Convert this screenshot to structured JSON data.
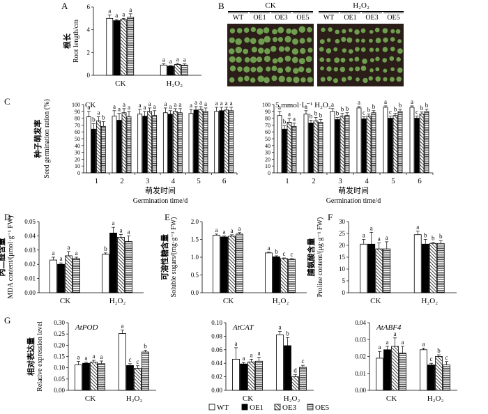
{
  "panel_letters": [
    "A",
    "B",
    "C",
    "D",
    "E",
    "F",
    "G"
  ],
  "legend": [
    {
      "name": "WT",
      "pattern": "white"
    },
    {
      "name": "OE1",
      "pattern": "black"
    },
    {
      "name": "OE3",
      "pattern": "diag"
    },
    {
      "name": "OE5",
      "pattern": "horiz"
    }
  ],
  "photo": {
    "groups": [
      "CK",
      "H₂O₂"
    ],
    "labels": [
      "WT",
      "OE1",
      "OE3",
      "OE5"
    ],
    "colors": {
      "soil": "#2b1d17",
      "plant": "#7cb55a"
    }
  },
  "chart_data": [
    {
      "id": "A",
      "type": "bar",
      "title": "",
      "xlabel": "",
      "ylabel": "根长 Root length/cm",
      "categories": [
        "CK",
        "H₂O₂"
      ],
      "ylim": [
        0,
        6
      ],
      "yticks": [
        0,
        2,
        4,
        6
      ],
      "series": [
        {
          "name": "WT",
          "values": [
            5.0,
            0.9
          ],
          "err": [
            0.3,
            0.1
          ]
        },
        {
          "name": "OE1",
          "values": [
            4.8,
            0.8
          ],
          "err": [
            0.1,
            0.05
          ]
        },
        {
          "name": "OE3",
          "values": [
            4.9,
            0.95
          ],
          "err": [
            0.1,
            0.1
          ]
        },
        {
          "name": "OE5",
          "values": [
            5.1,
            0.9
          ],
          "err": [
            0.3,
            0.1
          ]
        }
      ],
      "letters": [
        [
          "a",
          "a"
        ],
        [
          "a",
          "a"
        ],
        [
          "a",
          "a"
        ],
        [
          "a",
          "a"
        ]
      ]
    },
    {
      "id": "C1",
      "type": "bar",
      "title": "CK",
      "xlabel": "",
      "ylabel": "种子萌发率 Seed germination ration (%)",
      "categories": [
        "1",
        "2",
        "3",
        "4",
        "5",
        "6"
      ],
      "ylim": [
        0,
        100
      ],
      "yticks": [
        0,
        10,
        20,
        30,
        40,
        50,
        60,
        70,
        80,
        90,
        100
      ],
      "series": [
        {
          "name": "WT",
          "values": [
            82,
            83,
            86,
            88,
            87,
            90
          ],
          "err": [
            8,
            8,
            7,
            7,
            6,
            6
          ]
        },
        {
          "name": "OE1",
          "values": [
            64,
            77,
            83,
            86,
            92,
            91
          ],
          "err": [
            8,
            10,
            7,
            5,
            5,
            5
          ]
        },
        {
          "name": "OE3",
          "values": [
            76,
            88,
            90,
            90,
            93,
            92
          ],
          "err": [
            6,
            6,
            5,
            4,
            4,
            4
          ]
        },
        {
          "name": "OE5",
          "values": [
            68,
            82,
            84,
            88,
            90,
            91
          ],
          "err": [
            7,
            8,
            7,
            6,
            5,
            5
          ]
        }
      ],
      "letters": [
        [
          "a",
          "a",
          "a",
          "a",
          "a",
          "a"
        ],
        [
          "b",
          "a",
          "a",
          "a",
          "a",
          "a"
        ],
        [
          "a",
          "a",
          "a",
          "a",
          "a",
          "a"
        ],
        [
          "b",
          "a",
          "a",
          "a",
          "a",
          "a"
        ]
      ]
    },
    {
      "id": "C2",
      "type": "bar",
      "title": "5 mmol·L⁻¹ H₂O₂",
      "xlabel": "",
      "ylabel": "",
      "categories": [
        "1",
        "2",
        "3",
        "4",
        "5",
        "6"
      ],
      "ylim": [
        0,
        100
      ],
      "yticks": [
        0,
        10,
        20,
        30,
        40,
        50,
        60,
        70,
        80,
        90,
        100
      ],
      "series": [
        {
          "name": "WT",
          "values": [
            84,
            86,
            90,
            95,
            96,
            96
          ],
          "err": [
            6,
            5,
            4,
            2,
            2,
            2
          ]
        },
        {
          "name": "OE1",
          "values": [
            64,
            73,
            78,
            79,
            80,
            80
          ],
          "err": [
            5,
            4,
            3,
            3,
            3,
            3
          ]
        },
        {
          "name": "OE3",
          "values": [
            74,
            76,
            83,
            83,
            84,
            86
          ],
          "err": [
            6,
            5,
            4,
            3,
            3,
            3
          ]
        },
        {
          "name": "OE5",
          "values": [
            68,
            74,
            84,
            88,
            90,
            90
          ],
          "err": [
            5,
            4,
            4,
            3,
            3,
            3
          ]
        }
      ],
      "letters": [
        [
          "a",
          "a",
          "a",
          "a",
          "a",
          "a"
        ],
        [
          "b",
          "b",
          "b",
          "c",
          "c",
          "c"
        ],
        [
          "a",
          "b",
          "b",
          "b",
          "b",
          "b"
        ],
        [
          "a",
          "b",
          "b",
          "b",
          "b",
          "b"
        ]
      ]
    },
    {
      "id": "D",
      "type": "bar",
      "title": "",
      "xlabel": "",
      "ylabel": "丙二醛含量 MDA content/(μmol·g⁻¹ FW)",
      "categories": [
        "CK",
        "H₂O₂"
      ],
      "ylim": [
        0,
        0.05
      ],
      "yticks": [
        0,
        0.01,
        0.02,
        0.03,
        0.04,
        0.05
      ],
      "series": [
        {
          "name": "WT",
          "values": [
            0.023,
            0.027
          ],
          "err": [
            0.002,
            0.001
          ]
        },
        {
          "name": "OE1",
          "values": [
            0.02,
            0.042
          ],
          "err": [
            0.001,
            0.004
          ]
        },
        {
          "name": "OE3",
          "values": [
            0.026,
            0.039
          ],
          "err": [
            0.003,
            0.002
          ]
        },
        {
          "name": "OE5",
          "values": [
            0.024,
            0.036
          ],
          "err": [
            0.001,
            0.004
          ]
        }
      ],
      "letters": [
        [
          "a",
          "b"
        ],
        [
          "a",
          "a"
        ],
        [
          "a",
          "a"
        ],
        [
          "a",
          "a"
        ]
      ]
    },
    {
      "id": "E",
      "type": "bar",
      "title": "",
      "xlabel": "",
      "ylabel": "可溶性糖含量 Soluble sugars/(mg·g⁻¹ FW)",
      "categories": [
        "CK",
        "H₂O₂"
      ],
      "ylim": [
        0,
        2.0
      ],
      "yticks": [
        0,
        0.5,
        1.0,
        1.5,
        2.0
      ],
      "series": [
        {
          "name": "WT",
          "values": [
            1.62,
            1.12
          ],
          "err": [
            0.03,
            0.02
          ]
        },
        {
          "name": "OE1",
          "values": [
            1.57,
            1.01
          ],
          "err": [
            0.03,
            0.03
          ]
        },
        {
          "name": "OE3",
          "values": [
            1.59,
            0.96
          ],
          "err": [
            0.04,
            0.02
          ]
        },
        {
          "name": "OE5",
          "values": [
            1.65,
            0.94
          ],
          "err": [
            0.04,
            0.02
          ]
        }
      ],
      "letters": [
        [
          "a",
          "a"
        ],
        [
          "a",
          "b"
        ],
        [
          "a",
          "c"
        ],
        [
          "a",
          "c"
        ]
      ]
    },
    {
      "id": "F",
      "type": "bar",
      "title": "",
      "xlabel": "",
      "ylabel": "脯氨酸含量 Proline content/(μg·g⁻¹ FW)",
      "categories": [
        "CK",
        "H₂O₂"
      ],
      "ylim": [
        0,
        30
      ],
      "yticks": [
        0,
        5,
        10,
        15,
        20,
        25,
        30
      ],
      "series": [
        {
          "name": "WT",
          "values": [
            20.5,
            24.5
          ],
          "err": [
            2.0,
            1.5
          ]
        },
        {
          "name": "OE1",
          "values": [
            20.5,
            20.5
          ],
          "err": [
            5.0,
            2.0
          ]
        },
        {
          "name": "OE3",
          "values": [
            18.5,
            20.8
          ],
          "err": [
            2.5,
            0.5
          ]
        },
        {
          "name": "OE5",
          "values": [
            18.5,
            20.8
          ],
          "err": [
            3.0,
            1.2
          ]
        }
      ],
      "letters": [
        [
          "a",
          "a"
        ],
        [
          "a",
          "b"
        ],
        [
          "a",
          "b"
        ],
        [
          "a",
          "b"
        ]
      ]
    },
    {
      "id": "G1",
      "type": "bar",
      "title": "AtPOD",
      "xlabel": "",
      "ylabel": "相对表达量 Relative expression level",
      "categories": [
        "CK",
        "H₂O₂"
      ],
      "ylim": [
        0,
        0.3
      ],
      "yticks": [
        0,
        0.05,
        0.1,
        0.15,
        0.2,
        0.25,
        0.3
      ],
      "series": [
        {
          "name": "WT",
          "values": [
            0.113,
            0.252
          ],
          "err": [
            0.015,
            0.015
          ]
        },
        {
          "name": "OE1",
          "values": [
            0.12,
            0.11
          ],
          "err": [
            0.005,
            0.008
          ]
        },
        {
          "name": "OE3",
          "values": [
            0.125,
            0.097
          ],
          "err": [
            0.008,
            0.012
          ]
        },
        {
          "name": "OE5",
          "values": [
            0.118,
            0.17
          ],
          "err": [
            0.012,
            0.008
          ]
        }
      ],
      "letters": [
        [
          "a",
          "a"
        ],
        [
          "a",
          "c"
        ],
        [
          "a",
          "c"
        ],
        [
          "a",
          "b"
        ]
      ]
    },
    {
      "id": "G2",
      "type": "bar",
      "title": "AtCAT",
      "xlabel": "",
      "ylabel": "",
      "categories": [
        "CK",
        "H₂O₂"
      ],
      "ylim": [
        0,
        0.1
      ],
      "yticks": [
        0,
        0.02,
        0.04,
        0.06,
        0.08,
        0.1
      ],
      "series": [
        {
          "name": "WT",
          "values": [
            0.046,
            0.082
          ],
          "err": [
            0.017,
            0.005
          ]
        },
        {
          "name": "OE1",
          "values": [
            0.039,
            0.066
          ],
          "err": [
            0.002,
            0.012
          ]
        },
        {
          "name": "OE3",
          "values": [
            0.042,
            0.02
          ],
          "err": [
            0.004,
            0.003
          ]
        },
        {
          "name": "OE5",
          "values": [
            0.043,
            0.034
          ],
          "err": [
            0.006,
            0.003
          ]
        }
      ],
      "letters": [
        [
          "a",
          "a"
        ],
        [
          "a",
          "b"
        ],
        [
          "a",
          "d"
        ],
        [
          "a",
          "c"
        ]
      ]
    },
    {
      "id": "G3",
      "type": "bar",
      "title": "AtABF4",
      "xlabel": "",
      "ylabel": "",
      "categories": [
        "CK",
        "H₂O₂"
      ],
      "ylim": [
        0,
        0.04
      ],
      "yticks": [
        0,
        0.01,
        0.02,
        0.03,
        0.04
      ],
      "series": [
        {
          "name": "WT",
          "values": [
            0.019,
            0.024
          ],
          "err": [
            0.004,
            0.001
          ]
        },
        {
          "name": "OE1",
          "values": [
            0.024,
            0.015
          ],
          "err": [
            0.002,
            0.001
          ]
        },
        {
          "name": "OE3",
          "values": [
            0.026,
            0.02
          ],
          "err": [
            0.005,
            0.001
          ]
        },
        {
          "name": "OE5",
          "values": [
            0.022,
            0.015
          ],
          "err": [
            0.004,
            0.002
          ]
        }
      ],
      "letters": [
        [
          "a",
          "a"
        ],
        [
          "a",
          "c"
        ],
        [
          "a",
          "b"
        ],
        [
          "a",
          "c"
        ]
      ]
    }
  ],
  "xtitles": {
    "germination": "萌发时间 Germination time/d"
  }
}
